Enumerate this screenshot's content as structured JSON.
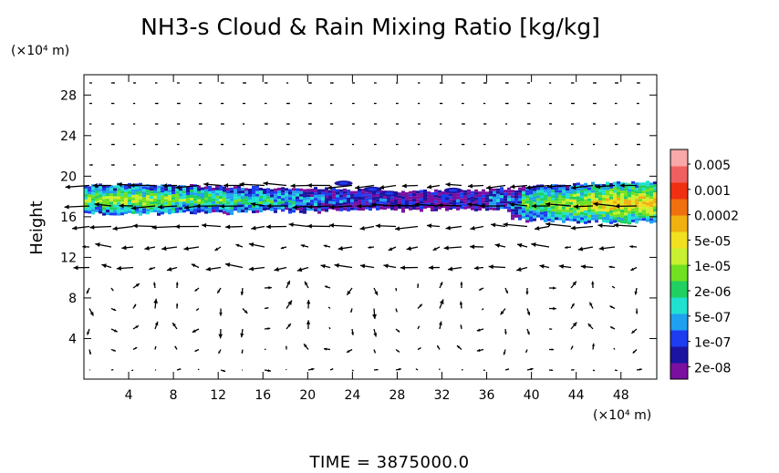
{
  "chart_data": {
    "type": "heatmap",
    "title": "NH3-s Cloud & Rain Mixing Ratio [kg/kg]",
    "ylabel": "Height",
    "xlabel": "",
    "x_unit": "(×10⁴ m)",
    "y_unit": "(×10⁴ m)",
    "x_ticks": [
      4,
      8,
      12,
      16,
      20,
      24,
      28,
      32,
      36,
      40,
      44,
      48
    ],
    "y_ticks": [
      4,
      8,
      12,
      16,
      20,
      24,
      28
    ],
    "xlim": [
      0,
      51.2
    ],
    "ylim": [
      0,
      30
    ],
    "colorbar": {
      "labels": [
        "0.005",
        "0.001",
        "0.0002",
        "5e-05",
        "1e-05",
        "2e-06",
        "5e-07",
        "1e-07",
        "2e-08"
      ],
      "colors": [
        "#7a0fa0",
        "#1b14a0",
        "#1e3cf0",
        "#1fa0f0",
        "#20e0d0",
        "#20d060",
        "#70e020",
        "#c8f030",
        "#f0e020",
        "#f0b010",
        "#f07010",
        "#f03010",
        "#f06060",
        "#f8a8a8"
      ]
    },
    "cloud_layer": {
      "y_bottom": 15.5,
      "y_top": 20,
      "note": "main cloud band near 16-19 height"
    },
    "wind_vectors": "arrow field"
  },
  "footer": {
    "time_label": "TIME  =  3875000.0"
  },
  "colors": {
    "frame": "#000000",
    "background": "#ffffff"
  }
}
